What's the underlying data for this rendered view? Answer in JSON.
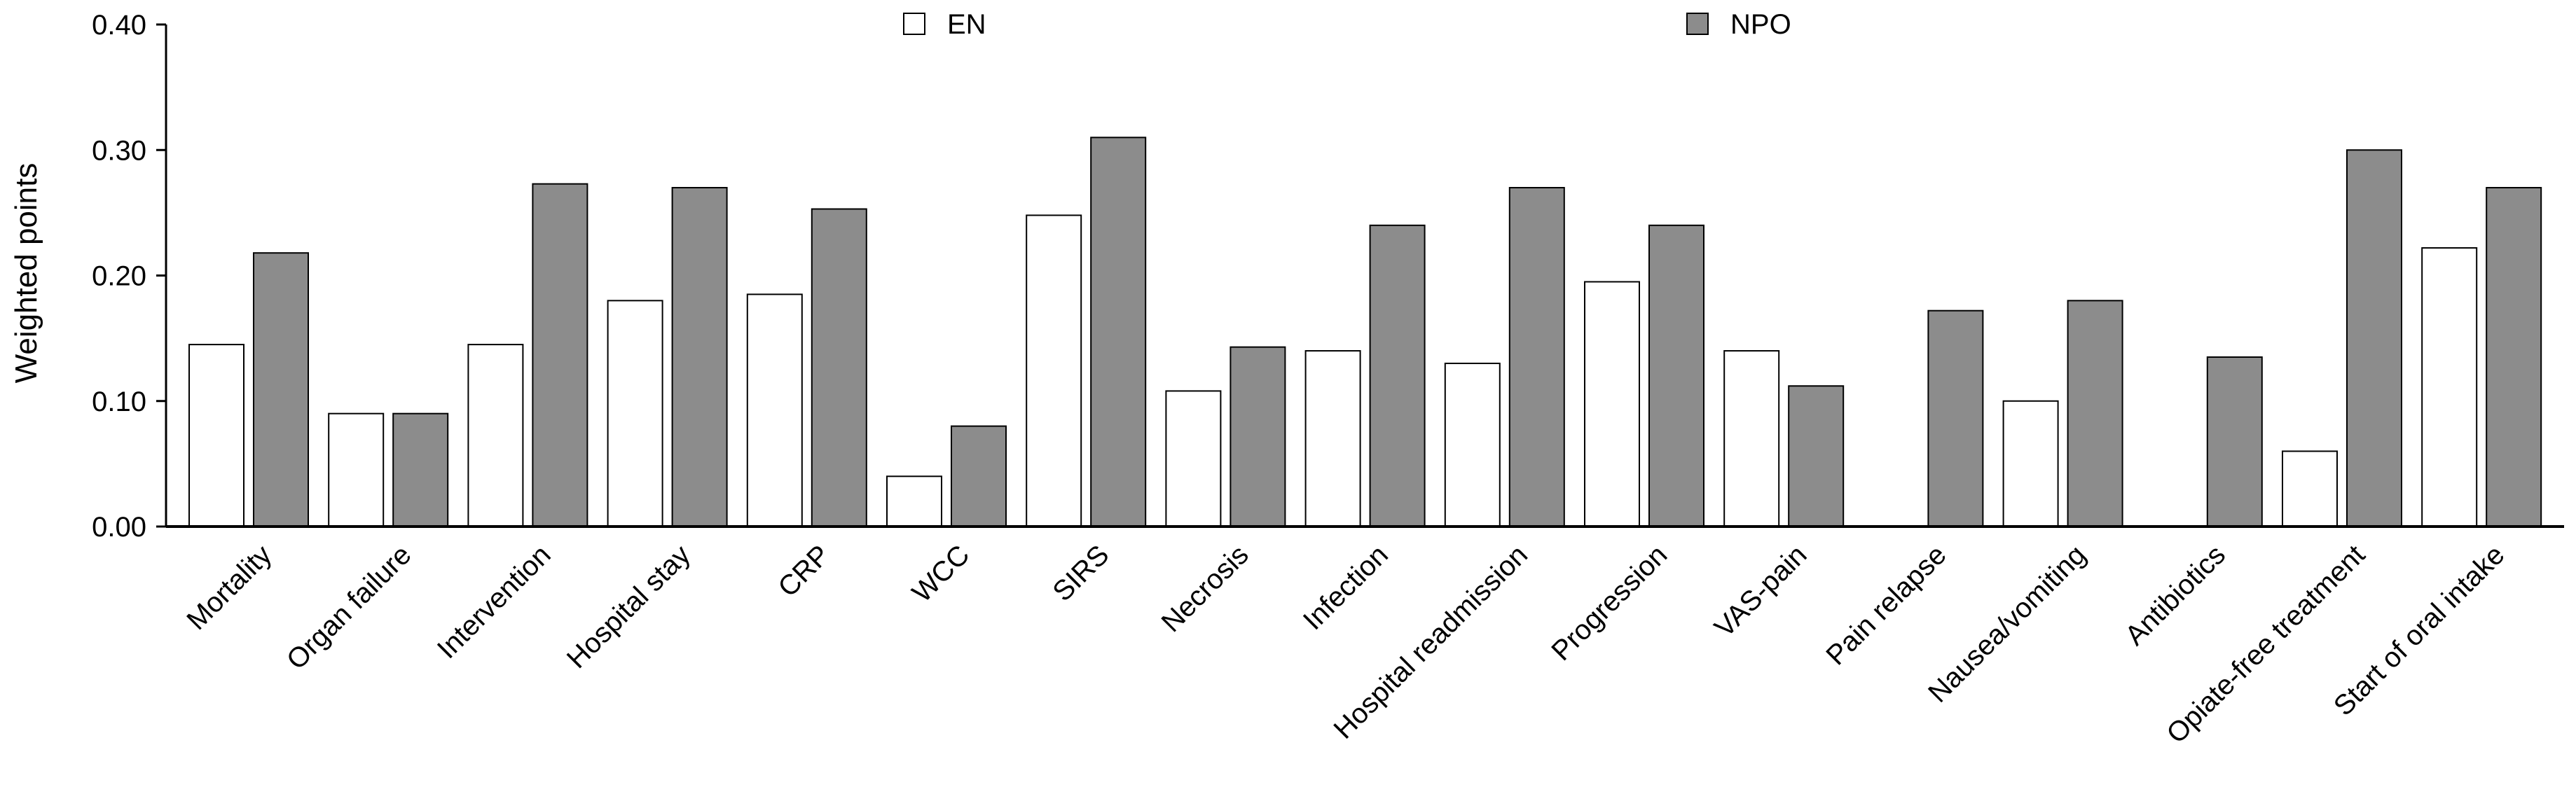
{
  "chart_data": {
    "type": "bar",
    "ylabel": "Weighted points",
    "ylim": [
      0,
      0.4
    ],
    "yticks": [
      "0.00",
      "0.10",
      "0.20",
      "0.30",
      "0.40"
    ],
    "yticks_values": [
      0,
      0.1,
      0.2,
      0.3,
      0.4
    ],
    "categories": [
      "Mortality",
      "Organ failure",
      "Intervention",
      "Hospital stay",
      "CRP",
      "WCC",
      "SIRS",
      "Necrosis",
      "Infection",
      "Hospital readmission",
      "Progression",
      "VAS-pain",
      "Pain relapse",
      "Nausea/vomiting",
      "Antibiotics",
      "Opiate-free treatment",
      "Start of oral intake"
    ],
    "series": [
      {
        "name": "EN",
        "color": "#ffffff",
        "values": [
          0.145,
          0.09,
          0.145,
          0.18,
          0.185,
          0.04,
          0.248,
          0.108,
          0.14,
          0.13,
          0.195,
          0.14,
          0,
          0.1,
          0,
          0.06,
          0.222
        ]
      },
      {
        "name": "NPO",
        "color": "#8c8c8c",
        "values": [
          0.218,
          0.09,
          0.273,
          0.27,
          0.253,
          0.08,
          0.31,
          0.143,
          0.24,
          0.27,
          0.24,
          0.112,
          0.172,
          0.18,
          0.135,
          0.3,
          0.27
        ]
      }
    ],
    "legend_position": "top-center",
    "grid": false
  }
}
